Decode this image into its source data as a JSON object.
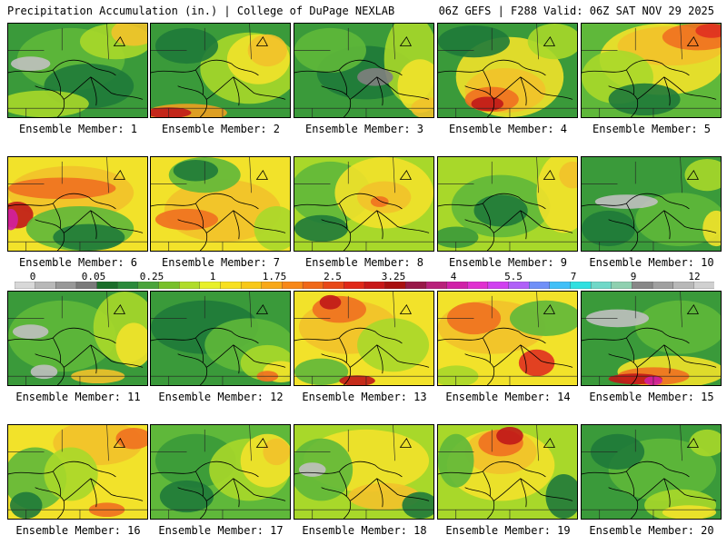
{
  "header": {
    "left_title": "Precipitation Accumulation (in.) | College of DuPage NEXLAB",
    "right_title": "06Z GEFS | F288 Valid: 06Z SAT NOV 29 2025"
  },
  "panels": [
    {
      "label": "Ensemble Member: 1",
      "base": "#3a9a3a",
      "blobs": [
        [
          "#5fb83a",
          70,
          40,
          60,
          35
        ],
        [
          "#a8d82a",
          120,
          20,
          40,
          20
        ],
        [
          "#f2c22a",
          140,
          10,
          25,
          15
        ],
        [
          "#c0c0c0",
          25,
          45,
          22,
          8
        ],
        [
          "#1f7a3a",
          90,
          70,
          50,
          25
        ],
        [
          "#a8d82a",
          40,
          90,
          50,
          15
        ]
      ]
    },
    {
      "label": "Ensemble Member: 2",
      "base": "#3a9a3a",
      "blobs": [
        [
          "#a8d82a",
          110,
          50,
          55,
          40
        ],
        [
          "#f2e22a",
          120,
          40,
          35,
          28
        ],
        [
          "#f2c22a",
          130,
          30,
          22,
          18
        ],
        [
          "#f0a020",
          40,
          100,
          45,
          10
        ],
        [
          "#c01818",
          20,
          100,
          25,
          6
        ],
        [
          "#1f7a3a",
          40,
          25,
          35,
          20
        ]
      ]
    },
    {
      "label": "Ensemble Member: 3",
      "base": "#3a9a3a",
      "blobs": [
        [
          "#1f7a3a",
          80,
          55,
          55,
          30
        ],
        [
          "#5fb83a",
          40,
          30,
          40,
          25
        ],
        [
          "#a8d82a",
          130,
          40,
          30,
          50
        ],
        [
          "#f2e22a",
          140,
          70,
          25,
          30
        ],
        [
          "#f2c22a",
          150,
          95,
          20,
          12
        ],
        [
          "#808080",
          90,
          60,
          20,
          10
        ]
      ]
    },
    {
      "label": "Ensemble Member: 4",
      "base": "#3a9a3a",
      "blobs": [
        [
          "#f2e22a",
          80,
          60,
          60,
          45
        ],
        [
          "#f2c22a",
          75,
          75,
          45,
          25
        ],
        [
          "#f07020",
          60,
          85,
          30,
          14
        ],
        [
          "#c01818",
          55,
          90,
          18,
          8
        ],
        [
          "#1f7a3a",
          40,
          20,
          40,
          18
        ],
        [
          "#a8d82a",
          130,
          20,
          30,
          20
        ]
      ]
    },
    {
      "label": "Ensemble Member: 5",
      "base": "#5fb83a",
      "blobs": [
        [
          "#f2e22a",
          90,
          40,
          70,
          40
        ],
        [
          "#f2c22a",
          100,
          25,
          60,
          22
        ],
        [
          "#f07020",
          130,
          15,
          40,
          15
        ],
        [
          "#e03020",
          145,
          8,
          18,
          8
        ],
        [
          "#a8d82a",
          40,
          60,
          40,
          30
        ],
        [
          "#1f7a3a",
          70,
          85,
          40,
          18
        ]
      ]
    },
    {
      "label": "Ensemble Member: 6",
      "base": "#f2e22a",
      "blobs": [
        [
          "#f2c22a",
          70,
          40,
          70,
          30
        ],
        [
          "#f07020",
          60,
          35,
          60,
          12
        ],
        [
          "#c01818",
          10,
          65,
          18,
          15
        ],
        [
          "#d020a0",
          3,
          70,
          8,
          12
        ],
        [
          "#5fb83a",
          80,
          80,
          60,
          25
        ],
        [
          "#1f7a3a",
          90,
          90,
          40,
          15
        ]
      ]
    },
    {
      "label": "Ensemble Member: 7",
      "base": "#f2e22a",
      "blobs": [
        [
          "#f2c22a",
          80,
          60,
          65,
          35
        ],
        [
          "#f07020",
          40,
          70,
          35,
          12
        ],
        [
          "#5fb83a",
          60,
          20,
          40,
          20
        ],
        [
          "#1f7a3a",
          50,
          15,
          25,
          12
        ],
        [
          "#a8d82a",
          140,
          80,
          25,
          25
        ]
      ]
    },
    {
      "label": "Ensemble Member: 8",
      "base": "#a8d82a",
      "blobs": [
        [
          "#5fb83a",
          40,
          40,
          45,
          35
        ],
        [
          "#f2e22a",
          100,
          40,
          55,
          40
        ],
        [
          "#f2c22a",
          100,
          45,
          30,
          18
        ],
        [
          "#f07020",
          95,
          50,
          10,
          6
        ],
        [
          "#1f7a3a",
          30,
          80,
          30,
          15
        ]
      ]
    },
    {
      "label": "Ensemble Member: 9",
      "base": "#a8d82a",
      "blobs": [
        [
          "#5fb83a",
          70,
          55,
          55,
          35
        ],
        [
          "#1f7a3a",
          70,
          60,
          30,
          18
        ],
        [
          "#f2e22a",
          140,
          40,
          30,
          45
        ],
        [
          "#f2c22a",
          150,
          20,
          15,
          15
        ],
        [
          "#3a9a3a",
          20,
          90,
          25,
          12
        ]
      ]
    },
    {
      "label": "Ensemble Member: 10",
      "base": "#3a9a3a",
      "blobs": [
        [
          "#5fb83a",
          110,
          70,
          50,
          30
        ],
        [
          "#c0c0c0",
          50,
          50,
          35,
          8
        ],
        [
          "#a8d82a",
          140,
          20,
          25,
          18
        ],
        [
          "#f2e22a",
          150,
          80,
          15,
          20
        ],
        [
          "#1f7a3a",
          30,
          80,
          30,
          20
        ]
      ]
    },
    {
      "label": "Ensemble Member: 11",
      "base": "#3a9a3a",
      "blobs": [
        [
          "#5fb83a",
          60,
          50,
          60,
          40
        ],
        [
          "#a8d82a",
          130,
          40,
          35,
          40
        ],
        [
          "#f2e22a",
          140,
          60,
          20,
          25
        ],
        [
          "#c0c0c0",
          25,
          45,
          20,
          8
        ],
        [
          "#c0c0c0",
          40,
          90,
          15,
          8
        ],
        [
          "#f2c22a",
          100,
          95,
          30,
          8
        ]
      ]
    },
    {
      "label": "Ensemble Member: 12",
      "base": "#3a9a3a",
      "blobs": [
        [
          "#1f7a3a",
          60,
          40,
          60,
          30
        ],
        [
          "#5fb83a",
          110,
          60,
          50,
          30
        ],
        [
          "#a8d82a",
          130,
          80,
          30,
          20
        ],
        [
          "#f2e22a",
          145,
          90,
          20,
          12
        ],
        [
          "#f07020",
          130,
          95,
          12,
          6
        ]
      ]
    },
    {
      "label": "Ensemble Member: 13",
      "base": "#f2e22a",
      "blobs": [
        [
          "#f2c22a",
          60,
          40,
          55,
          30
        ],
        [
          "#f07020",
          50,
          20,
          30,
          15
        ],
        [
          "#c01818",
          40,
          12,
          12,
          8
        ],
        [
          "#a8d82a",
          110,
          60,
          40,
          30
        ],
        [
          "#5fb83a",
          30,
          90,
          30,
          15
        ],
        [
          "#c01818",
          70,
          100,
          20,
          6
        ]
      ]
    },
    {
      "label": "Ensemble Member: 14",
      "base": "#f2e22a",
      "blobs": [
        [
          "#f2c22a",
          60,
          40,
          60,
          30
        ],
        [
          "#f07020",
          40,
          30,
          30,
          18
        ],
        [
          "#e03020",
          110,
          80,
          20,
          15
        ],
        [
          "#5fb83a",
          120,
          30,
          40,
          20
        ],
        [
          "#a8d82a",
          20,
          95,
          25,
          12
        ]
      ]
    },
    {
      "label": "Ensemble Member: 15",
      "base": "#3a9a3a",
      "blobs": [
        [
          "#5fb83a",
          110,
          40,
          50,
          30
        ],
        [
          "#c0c0c0",
          40,
          30,
          35,
          10
        ],
        [
          "#f2e22a",
          100,
          90,
          60,
          18
        ],
        [
          "#f07020",
          80,
          95,
          40,
          10
        ],
        [
          "#c01818",
          60,
          98,
          30,
          6
        ],
        [
          "#d020a0",
          80,
          100,
          10,
          5
        ]
      ]
    },
    {
      "label": "Ensemble Member: 16",
      "base": "#f2e22a",
      "blobs": [
        [
          "#f2c22a",
          100,
          20,
          50,
          25
        ],
        [
          "#f07020",
          140,
          15,
          20,
          12
        ],
        [
          "#5fb83a",
          30,
          60,
          35,
          35
        ],
        [
          "#a8d82a",
          70,
          55,
          30,
          30
        ],
        [
          "#f07020",
          110,
          95,
          20,
          8
        ],
        [
          "#1f7a3a",
          20,
          90,
          18,
          15
        ]
      ]
    },
    {
      "label": "Ensemble Member: 17",
      "base": "#5fb83a",
      "blobs": [
        [
          "#3a9a3a",
          50,
          40,
          45,
          30
        ],
        [
          "#a8d82a",
          110,
          50,
          45,
          35
        ],
        [
          "#f2e22a",
          130,
          40,
          30,
          30
        ],
        [
          "#f2c22a",
          140,
          30,
          15,
          15
        ],
        [
          "#1f7a3a",
          40,
          80,
          30,
          18
        ]
      ]
    },
    {
      "label": "Ensemble Member: 18",
      "base": "#a8d82a",
      "blobs": [
        [
          "#f2e22a",
          80,
          40,
          70,
          35
        ],
        [
          "#5fb83a",
          30,
          50,
          35,
          35
        ],
        [
          "#c0c0c0",
          20,
          50,
          15,
          8
        ],
        [
          "#f2c22a",
          100,
          80,
          40,
          15
        ],
        [
          "#1f7a3a",
          140,
          90,
          20,
          15
        ]
      ]
    },
    {
      "label": "Ensemble Member: 19",
      "base": "#a8d82a",
      "blobs": [
        [
          "#f2e22a",
          70,
          45,
          60,
          40
        ],
        [
          "#f2c22a",
          70,
          30,
          40,
          25
        ],
        [
          "#f07020",
          70,
          20,
          25,
          15
        ],
        [
          "#c01818",
          80,
          12,
          15,
          10
        ],
        [
          "#5fb83a",
          20,
          40,
          20,
          30
        ],
        [
          "#1f7a3a",
          140,
          80,
          20,
          25
        ]
      ]
    },
    {
      "label": "Ensemble Member: 20",
      "base": "#3a9a3a",
      "blobs": [
        [
          "#5fb83a",
          90,
          50,
          60,
          35
        ],
        [
          "#a8d82a",
          110,
          90,
          40,
          18
        ],
        [
          "#f2e22a",
          120,
          98,
          30,
          8
        ],
        [
          "#1f7a3a",
          40,
          30,
          30,
          20
        ],
        [
          "#a8d82a",
          140,
          20,
          20,
          15
        ]
      ]
    }
  ],
  "scale": {
    "ticks": [
      "0",
      "0.05",
      "0.25",
      "1",
      "1.75",
      "2.5",
      "3.25",
      "4",
      "5.5",
      "7",
      "9",
      "12"
    ],
    "colors": [
      "#d8d8d8",
      "#b8b8b8",
      "#989898",
      "#7a7a7a",
      "#1a6e2a",
      "#2a8a3a",
      "#4aa43a",
      "#78c02a",
      "#b0dc2a",
      "#e8f02a",
      "#f8e020",
      "#f8c818",
      "#f8a818",
      "#f88818",
      "#f06818",
      "#e84818",
      "#e02818",
      "#c81818",
      "#a81010",
      "#981848",
      "#b8207a",
      "#d020a8",
      "#e030d0",
      "#d040f0",
      "#b060f8",
      "#7090f8",
      "#40c0f8",
      "#30e0e0",
      "#70d8c8",
      "#8fd0b0",
      "#888888",
      "#a0a0a0",
      "#b8b8b8",
      "#d0d0d0"
    ]
  }
}
